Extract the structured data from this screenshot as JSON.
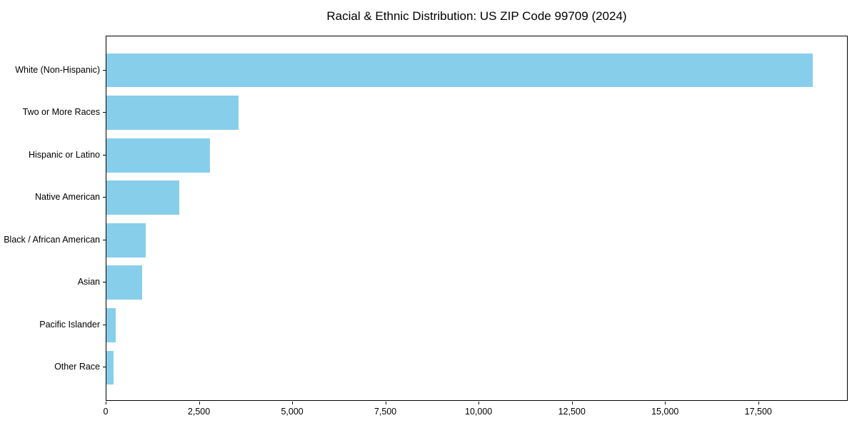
{
  "chart_data": {
    "type": "bar",
    "orientation": "horizontal",
    "title": "Racial & Ethnic Distribution: US ZIP Code 99709 (2024)",
    "categories": [
      "White (Non-Hispanic)",
      "Two or More Races",
      "Hispanic or Latino",
      "Native American",
      "Black / African American",
      "Asian",
      "Pacific Islander",
      "Other Race"
    ],
    "values": [
      18950,
      3550,
      2780,
      1950,
      1050,
      950,
      250,
      195
    ],
    "xlabel": "",
    "ylabel": "",
    "xlim": [
      0,
      19898
    ],
    "xticks": [
      0,
      2500,
      5000,
      7500,
      10000,
      12500,
      15000,
      17500
    ],
    "xtick_labels": [
      "0",
      "2,500",
      "5,000",
      "7,500",
      "10,000",
      "12,500",
      "15,000",
      "17,500"
    ],
    "bar_color": "#87CEEB",
    "text_color": "#000000",
    "grid": false,
    "legend": null
  }
}
